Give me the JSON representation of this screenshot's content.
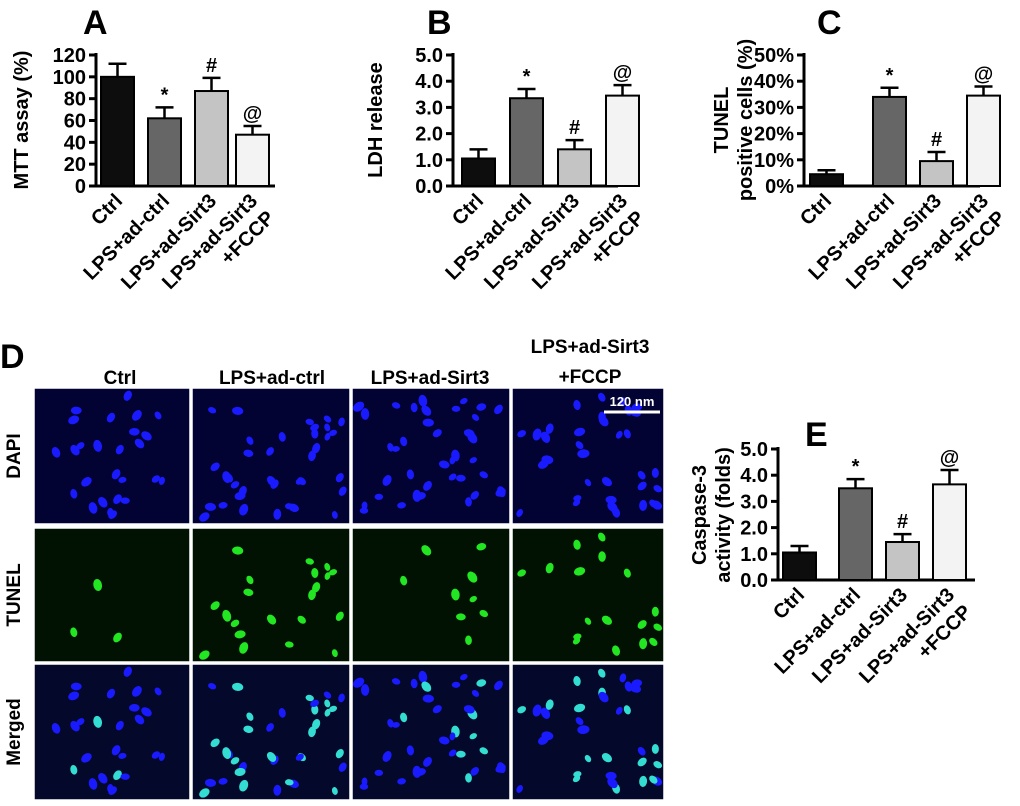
{
  "colors": {
    "ctrl": "#0d0d0d",
    "lps_ad_ctrl": "#666666",
    "lps_ad_sirt3": "#c4c4c4",
    "lps_ad_sirt3_fccp": "#f3f3f3",
    "dapi_nuclei": "#1a1aff",
    "tunel_nuclei": "#22e622",
    "merged_nuclei": "#33ddd2"
  },
  "chart_data": [
    {
      "panel": "A",
      "type": "bar",
      "ylabel": "MTT assay (%)",
      "categories": [
        [
          "Ctrl"
        ],
        [
          "LPS+ad-ctrl"
        ],
        [
          "LPS+ad-Sirt3"
        ],
        [
          "LPS+ad-Sirt3",
          "+FCCP"
        ]
      ],
      "values": [
        100,
        62,
        87,
        47
      ],
      "errors": [
        12,
        10,
        12,
        8
      ],
      "annotations": [
        "",
        "*",
        "#",
        "@"
      ],
      "ylim": [
        0,
        120
      ],
      "yticks": [
        "0",
        "20",
        "40",
        "60",
        "80",
        "100",
        "120"
      ]
    },
    {
      "panel": "B",
      "type": "bar",
      "ylabel": "LDH release",
      "categories": [
        [
          "Ctrl"
        ],
        [
          "LPS+ad-ctrl"
        ],
        [
          "LPS+ad-Sirt3"
        ],
        [
          "LPS+ad-Sirt3",
          "+FCCP"
        ]
      ],
      "values": [
        1.05,
        3.35,
        1.4,
        3.45
      ],
      "errors": [
        0.35,
        0.35,
        0.35,
        0.4
      ],
      "annotations": [
        "",
        "*",
        "#",
        "@"
      ],
      "ylim": [
        0,
        5
      ],
      "yticks": [
        "0.0",
        "1.0",
        "2.0",
        "3.0",
        "4.0",
        "5.0"
      ]
    },
    {
      "panel": "C",
      "type": "bar",
      "ylabel": "TUNEL positive cells (%)",
      "ylabel_lines": [
        "TUNEL",
        "positive cells (%)"
      ],
      "categories": [
        [
          "Ctrl"
        ],
        [
          "LPS+ad-ctrl"
        ],
        [
          "LPS+ad-Sirt3"
        ],
        [
          "LPS+ad-Sirt3",
          "+FCCP"
        ]
      ],
      "values": [
        4.5,
        34,
        9.5,
        34.5
      ],
      "errors": [
        1.5,
        3.5,
        3.5,
        3.5
      ],
      "annotations": [
        "",
        "*",
        "#",
        "@"
      ],
      "ylim": [
        0,
        50
      ],
      "yticks": [
        "0%",
        "10%",
        "20%",
        "30%",
        "40%",
        "50%"
      ]
    },
    {
      "panel": "E",
      "type": "bar",
      "ylabel": "Caspase-3 activity (folds)",
      "ylabel_lines": [
        "Caspase-3",
        "activity (folds)"
      ],
      "categories": [
        [
          "Ctrl"
        ],
        [
          "LPS+ad-ctrl"
        ],
        [
          "LPS+ad-Sirt3"
        ],
        [
          "LPS+ad-Sirt3",
          "+FCCP"
        ]
      ],
      "values": [
        1.05,
        3.5,
        1.45,
        3.65
      ],
      "errors": [
        0.25,
        0.35,
        0.3,
        0.55
      ],
      "annotations": [
        "",
        "*",
        "#",
        "@"
      ],
      "ylim": [
        0,
        5
      ],
      "yticks": [
        "0.0",
        "1.0",
        "2.0",
        "3.0",
        "4.0",
        "5.0"
      ]
    }
  ],
  "micrograph": {
    "panel": "D",
    "columns": [
      [
        "Ctrl"
      ],
      [
        "LPS+ad-ctrl"
      ],
      [
        "LPS+ad-Sirt3"
      ],
      [
        "LPS+ad-Sirt3",
        "+FCCP"
      ]
    ],
    "rows": [
      "DAPI",
      "TUNEL",
      "Merged"
    ],
    "scale_bar": "120 nm"
  }
}
